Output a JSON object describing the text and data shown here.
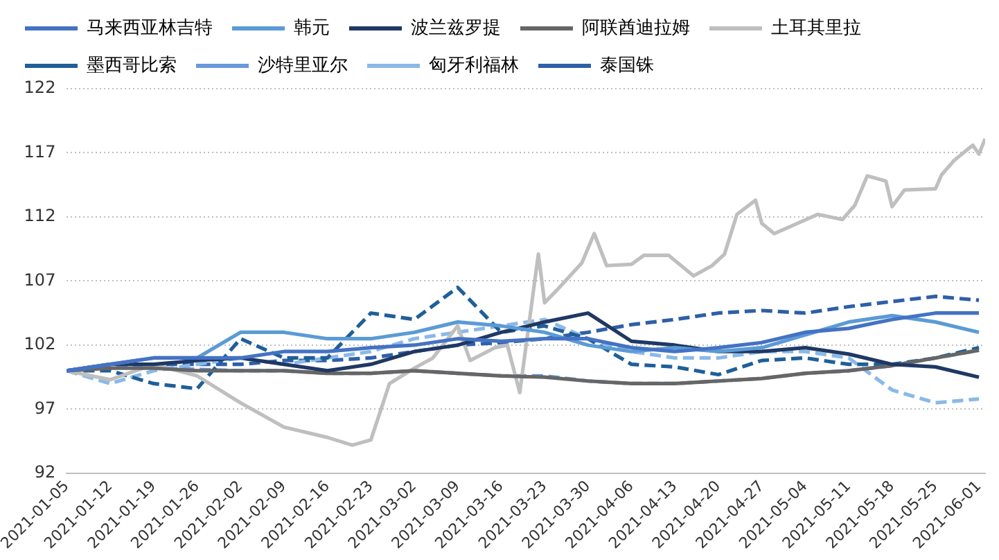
{
  "chart_data": {
    "type": "line",
    "x": [
      "2021-01-05",
      "2021-01-12",
      "2021-01-19",
      "2021-01-26",
      "2021-02-02",
      "2021-02-09",
      "2021-02-16",
      "2021-02-23",
      "2021-03-02",
      "2021-03-09",
      "2021-03-16",
      "2021-03-23",
      "2021-03-30",
      "2021-04-06",
      "2021-04-13",
      "2021-04-20",
      "2021-04-27",
      "2021-05-04",
      "2021-05-11",
      "2021-05-18",
      "2021-05-25",
      "2021-06-01"
    ],
    "series": [
      {
        "name": "马来西亚林吉特",
        "color": "#4472c4",
        "line_style": "solid",
        "values": [
          100,
          100.5,
          101,
          101,
          101,
          101.5,
          101.5,
          101.8,
          102,
          102.5,
          102.3,
          102.5,
          102.5,
          101.8,
          101.5,
          101.8,
          102.2,
          103,
          103.3,
          104,
          104.5,
          104.5
        ]
      },
      {
        "name": "韩元",
        "color": "#5b9bd5",
        "line_style": "solid",
        "values": [
          100,
          100.5,
          101,
          101,
          103,
          103,
          102.5,
          102.5,
          103,
          103.8,
          103.5,
          103,
          102,
          101.5,
          101.8,
          101.5,
          101.8,
          102.8,
          103.8,
          104.3,
          103.8,
          103
        ]
      },
      {
        "name": "波兰兹罗提",
        "color": "#1f3864",
        "line_style": "solid",
        "values": [
          100,
          100.5,
          100.5,
          100.8,
          101,
          100.5,
          100,
          100.5,
          101.5,
          102,
          103,
          103.8,
          104.5,
          102.3,
          102,
          101.5,
          101.5,
          101.8,
          101.3,
          100.5,
          100.3,
          99.5
        ]
      },
      {
        "name": "阿联酋迪拉姆",
        "color": "#666666",
        "line_style": "solid",
        "values": [
          100,
          100.2,
          100.2,
          100,
          100,
          100,
          99.8,
          99.8,
          100,
          99.8,
          99.6,
          99.5,
          99.2,
          99,
          99,
          99.2,
          99.4,
          99.8,
          100,
          100.4,
          101,
          101.6
        ]
      },
      {
        "name": "土耳其里拉",
        "color": "#bfbfbf",
        "line_style": "solid",
        "x": [
          "2021-01-05",
          "2021-01-12",
          "2021-01-19",
          "2021-01-26",
          "2021-02-02",
          "2021-02-09",
          "2021-02-16",
          "2021-02-20",
          "2021-02-23",
          "2021-02-26",
          "2021-03-02",
          "2021-03-05",
          "2021-03-09",
          "2021-03-11",
          "2021-03-15",
          "2021-03-17",
          "2021-03-19",
          "2021-03-22",
          "2021-03-23",
          "2021-03-25",
          "2021-03-29",
          "2021-03-31",
          "2021-04-02",
          "2021-04-06",
          "2021-04-08",
          "2021-04-12",
          "2021-04-16",
          "2021-04-19",
          "2021-04-21",
          "2021-04-23",
          "2021-04-26",
          "2021-04-27",
          "2021-04-29",
          "2021-05-06",
          "2021-05-10",
          "2021-05-12",
          "2021-05-14",
          "2021-05-17",
          "2021-05-18",
          "2021-05-20",
          "2021-05-25",
          "2021-05-26",
          "2021-05-28",
          "2021-05-31",
          "2021-06-01",
          "2021-06-02"
        ],
        "values": [
          100,
          99.3,
          100.5,
          99.6,
          97.5,
          95.6,
          94.8,
          94.2,
          94.6,
          99,
          100.2,
          101,
          103.5,
          100.8,
          101.8,
          102,
          98.3,
          109.1,
          105.3,
          106.3,
          108.4,
          110.7,
          108.2,
          108.3,
          109,
          109,
          107.4,
          108.2,
          109.1,
          112.2,
          113.3,
          111.5,
          110.7,
          112.2,
          111.8,
          112.9,
          115.2,
          114.8,
          112.8,
          114.1,
          114.2,
          115.3,
          116.4,
          117.6,
          116.9,
          118.1
        ]
      },
      {
        "name": "墨西哥比索",
        "color": "#1f5f99",
        "line_style": "dashed",
        "values": [
          100,
          100,
          99,
          98.6,
          102.5,
          101,
          101,
          104.5,
          104,
          106.5,
          103,
          103.5,
          102.5,
          100.5,
          100.3,
          99.7,
          100.8,
          101,
          100.5,
          100.5,
          101,
          101.8
        ]
      },
      {
        "name": "沙特里亚尔",
        "color": "#6a98dc",
        "line_style": "dashed",
        "values": [
          100,
          100.3,
          100.2,
          100.1,
          100,
          100,
          99.8,
          99.8,
          100,
          99.8,
          99.6,
          99.6,
          99.2,
          99,
          99,
          99.2,
          99.4,
          99.8,
          100,
          100.4,
          101,
          101.6
        ]
      },
      {
        "name": "匈牙利福林",
        "color": "#8ab9e8",
        "line_style": "dashed",
        "values": [
          100,
          99,
          100,
          100.5,
          101,
          100.5,
          101,
          101.5,
          102.5,
          103,
          103.5,
          104,
          102.5,
          101.5,
          101,
          101,
          101.5,
          101.5,
          101,
          98.5,
          97.5,
          97.8
        ]
      },
      {
        "name": "泰国铢",
        "color": "#2e5fa8",
        "line_style": "dashed",
        "values": [
          100,
          100.5,
          100.5,
          100.5,
          100.5,
          100.8,
          100.8,
          101,
          101.5,
          102,
          102.2,
          102.5,
          103,
          103.6,
          104,
          104.5,
          104.7,
          104.5,
          105,
          105.4,
          105.8,
          105.5
        ]
      }
    ],
    "xlim": [
      "2021-01-05",
      "2021-06-02"
    ],
    "xticks": [
      "2021-01-05",
      "2021-01-12",
      "2021-01-19",
      "2021-01-26",
      "2021-02-02",
      "2021-02-09",
      "2021-02-16",
      "2021-02-23",
      "2021-03-02",
      "2021-03-09",
      "2021-03-16",
      "2021-03-23",
      "2021-03-30",
      "2021-04-06",
      "2021-04-13",
      "2021-04-20",
      "2021-04-27",
      "2021-05-04",
      "2021-05-11",
      "2021-05-18",
      "2021-05-25",
      "2021-06-01"
    ],
    "ylim": [
      92,
      122
    ],
    "yticks": [
      92,
      97,
      102,
      107,
      112,
      117,
      122
    ],
    "grid": "y",
    "legend": "top left",
    "marker": "none"
  }
}
